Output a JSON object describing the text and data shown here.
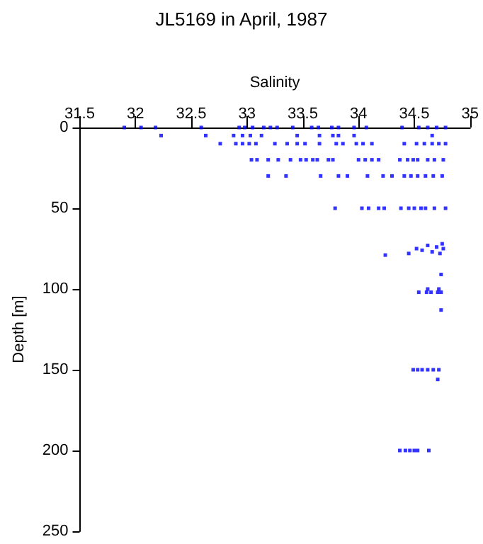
{
  "chart_data": {
    "type": "scatter",
    "title": "JL5169 in April, 1987",
    "xlabel": "Salinity",
    "ylabel": "Depth [m]",
    "x": [
      31.9,
      32.05,
      32.18,
      32.59,
      32.93,
      32.98,
      33.05,
      33.15,
      33.21,
      33.27,
      33.41,
      33.58,
      33.64,
      33.76,
      33.82,
      33.96,
      34.07,
      34.39,
      34.54,
      34.62,
      34.7,
      34.78,
      32.23,
      32.63,
      32.88,
      32.96,
      33.03,
      33.13,
      33.45,
      33.65,
      33.77,
      33.82,
      33.96,
      34.66,
      32.76,
      32.9,
      32.96,
      33.02,
      33.08,
      33.25,
      33.36,
      33.45,
      33.52,
      33.65,
      33.8,
      33.86,
      33.98,
      34.04,
      34.12,
      34.41,
      34.52,
      34.59,
      34.66,
      34.72,
      34.78,
      33.04,
      33.09,
      33.19,
      33.28,
      33.39,
      33.48,
      33.53,
      33.59,
      33.63,
      33.73,
      33.77,
      34.0,
      34.06,
      34.12,
      34.18,
      34.37,
      34.44,
      34.49,
      34.53,
      34.62,
      34.68,
      34.76,
      33.19,
      33.35,
      33.66,
      33.82,
      33.9,
      34.08,
      34.22,
      34.3,
      34.41,
      34.47,
      34.53,
      34.6,
      34.67,
      34.75,
      33.79,
      34.03,
      34.09,
      34.18,
      34.23,
      34.38,
      34.45,
      34.5,
      34.56,
      34.6,
      34.68,
      34.78,
      34.45,
      34.52,
      34.57,
      34.62,
      34.66,
      34.7,
      34.73,
      34.76,
      34.75,
      34.24,
      34.74,
      34.54,
      34.61,
      34.65,
      34.71,
      34.74,
      34.62,
      34.72,
      34.74,
      34.49,
      34.53,
      34.57,
      34.62,
      34.67,
      34.72,
      34.71,
      34.37,
      34.42,
      34.46,
      34.5,
      34.53,
      34.63
    ],
    "series": [
      {
        "color": "#0000ff",
        "values": [
          0,
          0,
          0,
          0,
          0,
          0,
          0,
          0,
          0,
          0,
          0,
          0,
          0,
          0,
          0,
          0,
          0,
          0,
          0,
          0,
          0,
          0,
          5,
          5,
          5,
          5,
          5,
          5,
          5,
          5,
          5,
          5,
          5,
          5,
          10,
          10,
          10,
          10,
          10,
          10,
          10,
          10,
          10,
          10,
          10,
          10,
          10,
          10,
          10,
          10,
          10,
          10,
          10,
          10,
          10,
          20,
          20,
          20,
          20,
          20,
          20,
          20,
          20,
          20,
          20,
          20,
          20,
          20,
          20,
          20,
          20,
          20,
          20,
          20,
          20,
          20,
          20,
          30,
          30,
          30,
          30,
          30,
          30,
          30,
          30,
          30,
          30,
          30,
          30,
          30,
          30,
          50,
          50,
          50,
          50,
          50,
          50,
          50,
          50,
          50,
          50,
          50,
          50,
          78,
          75,
          76,
          73,
          77,
          74,
          78,
          75,
          72,
          79,
          91,
          102,
          102,
          102,
          102,
          102,
          100,
          100,
          113,
          150,
          150,
          150,
          150,
          150,
          150,
          156,
          200,
          200,
          200,
          200,
          200,
          200
        ]
      }
    ],
    "xlim": [
      31.5,
      35
    ],
    "xticks": [
      31.5,
      32,
      32.5,
      33,
      33.5,
      34,
      34.5,
      35
    ],
    "ylim": [
      250,
      0
    ],
    "yticks": [
      0,
      50,
      100,
      150,
      200,
      250
    ],
    "grid": false,
    "marker": "square"
  }
}
